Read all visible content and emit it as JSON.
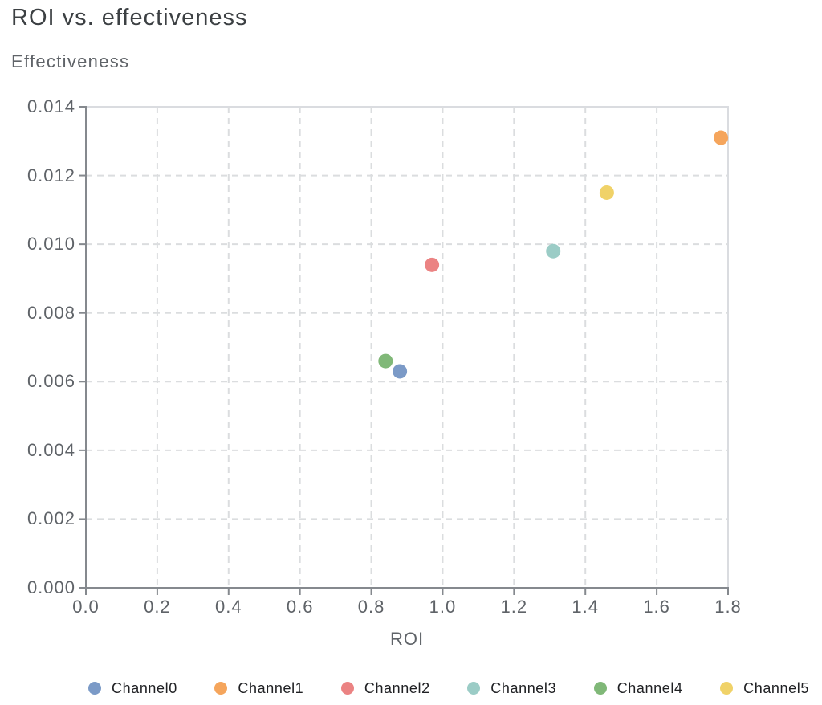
{
  "page": {
    "background": "#ffffff"
  },
  "chart_data": {
    "type": "scatter",
    "title": "ROI vs. effectiveness",
    "xlabel": "ROI",
    "ylabel": "Effectiveness",
    "xlim": [
      0,
      1.8
    ],
    "ylim": [
      0,
      0.014
    ],
    "x_ticks": [
      0,
      0.2,
      0.4,
      0.6,
      0.8,
      1.0,
      1.2,
      1.4,
      1.6,
      1.8
    ],
    "x_tick_labels": [
      "0.0",
      "0.2",
      "0.4",
      "0.6",
      "0.8",
      "1.0",
      "1.2",
      "1.4",
      "1.6",
      "1.8"
    ],
    "y_ticks": [
      0,
      0.002,
      0.004,
      0.006,
      0.008,
      0.01,
      0.012,
      0.014
    ],
    "y_tick_labels": [
      "0.000",
      "0.002",
      "0.004",
      "0.006",
      "0.008",
      "0.010",
      "0.012",
      "0.014"
    ],
    "grid": "dashed",
    "legend_position": "bottom",
    "point_radius": 9,
    "colors": {
      "axis": "#85898E",
      "grid": "#DBDDDF",
      "border": "#DADCE0",
      "title_text": "#3C4043",
      "axis_text": "#5F6368",
      "legend_text": "#202124"
    },
    "series": [
      {
        "name": "Channel0",
        "color": "#7B9AC7",
        "points": [
          {
            "x": 0.88,
            "y": 0.0063
          }
        ]
      },
      {
        "name": "Channel1",
        "color": "#F5A55C",
        "points": [
          {
            "x": 1.78,
            "y": 0.0131
          }
        ]
      },
      {
        "name": "Channel2",
        "color": "#EB8383",
        "points": [
          {
            "x": 0.97,
            "y": 0.0094
          }
        ]
      },
      {
        "name": "Channel3",
        "color": "#9BCCC6",
        "points": [
          {
            "x": 1.31,
            "y": 0.0098
          }
        ]
      },
      {
        "name": "Channel4",
        "color": "#80B878",
        "points": [
          {
            "x": 0.84,
            "y": 0.0066
          }
        ]
      },
      {
        "name": "Channel5",
        "color": "#F0D268",
        "points": [
          {
            "x": 1.46,
            "y": 0.0115
          }
        ]
      }
    ]
  }
}
